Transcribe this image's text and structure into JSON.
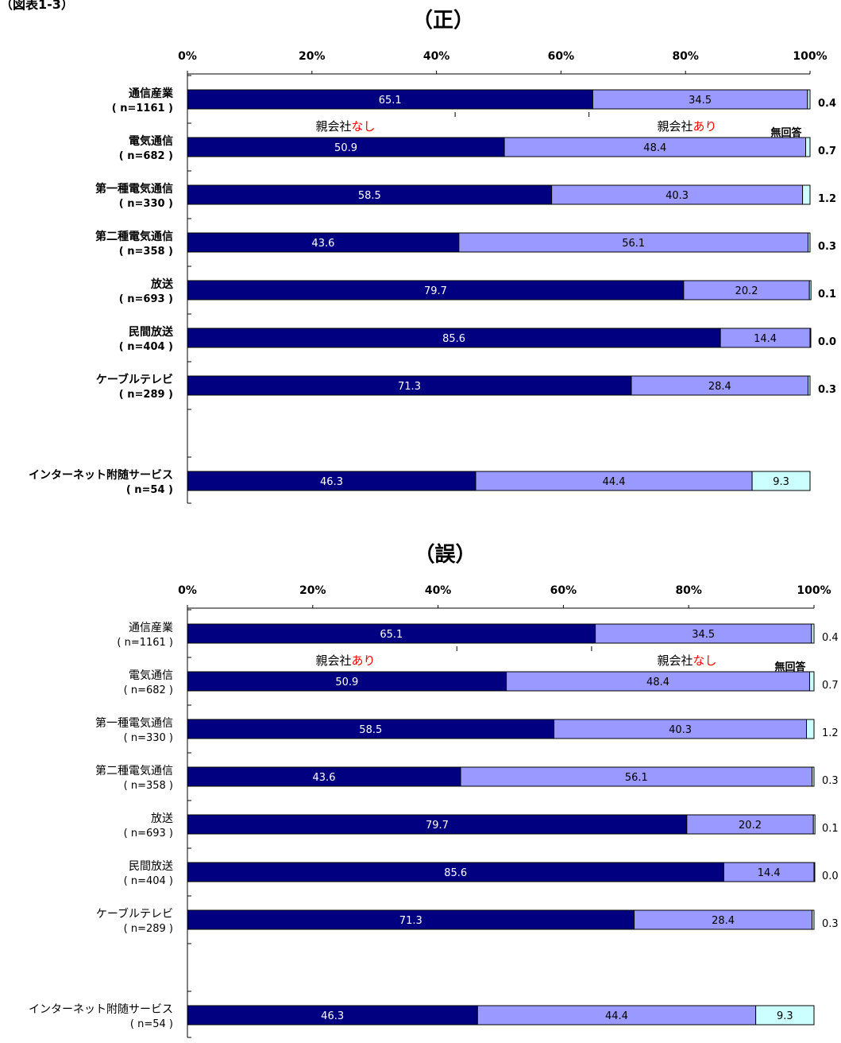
{
  "page_label": "（図表1-3）",
  "colors": {
    "nashi": "#000080",
    "ari": "#9999ff",
    "mukaito": "#ccffff",
    "red": "#ff0000"
  },
  "chart_data": [
    {
      "type": "bar",
      "orientation": "horizontal-stacked-100",
      "title": "（正）",
      "xlim": [
        0,
        100
      ],
      "xticks": [
        "0%",
        "20%",
        "40%",
        "60%",
        "80%",
        "100%"
      ],
      "categories": [
        "通信産業",
        "電気通信",
        "第一種電気通信",
        "第二種電気通信",
        "放送",
        "民間放送",
        "ケーブルテレビ",
        "インターネット附随サービス"
      ],
      "n_labels": [
        "( n=1161 )",
        "( n=682 )",
        "( n=330 )",
        "( n=358 )",
        "( n=693 )",
        "( n=404 )",
        "( n=289 )",
        "( n=54 )"
      ],
      "series": [
        {
          "values": [
            65.1,
            50.9,
            58.5,
            43.6,
            79.7,
            85.6,
            71.3,
            46.3
          ]
        },
        {
          "values": [
            34.5,
            48.4,
            40.3,
            56.1,
            20.2,
            14.4,
            28.4,
            44.4
          ]
        },
        {
          "values": [
            0.4,
            0.7,
            1.2,
            0.3,
            0.1,
            0.0,
            0.3,
            9.3
          ]
        }
      ],
      "outside_labels": [
        "0.4",
        "0.7",
        "1.2",
        "0.3",
        "0.1",
        "0.0",
        "0.3",
        ""
      ],
      "legend": {
        "left": {
          "base": "親会社",
          "accent": "なし"
        },
        "right": {
          "base": "親会社",
          "accent": "あり"
        },
        "third": "無回答"
      }
    },
    {
      "type": "bar",
      "orientation": "horizontal-stacked-100",
      "title": "（誤）",
      "xlim": [
        0,
        100
      ],
      "xticks": [
        "0%",
        "20%",
        "40%",
        "60%",
        "80%",
        "100%"
      ],
      "categories": [
        "通信産業",
        "電気通信",
        "第一種電気通信",
        "第二種電気通信",
        "放送",
        "民間放送",
        "ケーブルテレビ",
        "インターネット附随サービス"
      ],
      "n_labels": [
        "( n=1161 )",
        "( n=682 )",
        "( n=330 )",
        "( n=358 )",
        "( n=693 )",
        "( n=404 )",
        "( n=289 )",
        "( n=54 )"
      ],
      "series": [
        {
          "values": [
            65.1,
            50.9,
            58.5,
            43.6,
            79.7,
            85.6,
            71.3,
            46.3
          ]
        },
        {
          "values": [
            34.5,
            48.4,
            40.3,
            56.1,
            20.2,
            14.4,
            28.4,
            44.4
          ]
        },
        {
          "values": [
            0.4,
            0.7,
            1.2,
            0.3,
            0.1,
            0.0,
            0.3,
            9.3
          ]
        }
      ],
      "outside_labels": [
        "0.4",
        "0.7",
        "1.2",
        "0.3",
        "0.1",
        "0.0",
        "0.3",
        ""
      ],
      "legend": {
        "left": {
          "base": "親会社",
          "accent": "あり"
        },
        "right": {
          "base": "親会社",
          "accent": "なし"
        },
        "third": "無回答"
      }
    }
  ]
}
